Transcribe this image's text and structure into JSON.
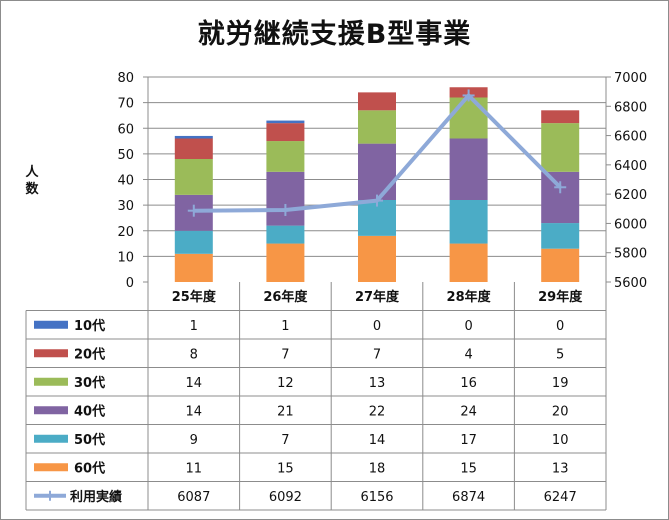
{
  "chart_data": {
    "type": "bar",
    "title": "就労継続支援B型事業",
    "ylabel": "人数",
    "categories": [
      "25年度",
      "26年度",
      "27年度",
      "28年度",
      "29年度"
    ],
    "ylim": [
      0,
      80
    ],
    "yticks": [
      0,
      10,
      20,
      30,
      40,
      50,
      60,
      70,
      80
    ],
    "y2lim": [
      5600,
      7000
    ],
    "y2ticks": [
      5600,
      5800,
      6000,
      6200,
      6400,
      6600,
      6800,
      7000
    ],
    "grid": true,
    "stack_order": [
      "60代",
      "50代",
      "40代",
      "30代",
      "20代",
      "10代"
    ],
    "series": [
      {
        "name": "10代",
        "kind": "bar",
        "color": "#4472c4",
        "values": [
          1,
          1,
          0,
          0,
          0
        ]
      },
      {
        "name": "20代",
        "kind": "bar",
        "color": "#c0504d",
        "values": [
          8,
          7,
          7,
          4,
          5
        ]
      },
      {
        "name": "30代",
        "kind": "bar",
        "color": "#9bbb59",
        "values": [
          14,
          12,
          13,
          16,
          19
        ]
      },
      {
        "name": "40代",
        "kind": "bar",
        "color": "#8064a2",
        "values": [
          14,
          21,
          22,
          24,
          20
        ]
      },
      {
        "name": "50代",
        "kind": "bar",
        "color": "#4bacc6",
        "values": [
          9,
          7,
          14,
          17,
          10
        ]
      },
      {
        "name": "60代",
        "kind": "bar",
        "color": "#f79646",
        "values": [
          11,
          15,
          18,
          15,
          13
        ]
      },
      {
        "name": "利用実績",
        "kind": "line",
        "axis": "right",
        "color": "#8ea9d8",
        "values": [
          6087,
          6092,
          6156,
          6874,
          6247
        ]
      }
    ]
  }
}
